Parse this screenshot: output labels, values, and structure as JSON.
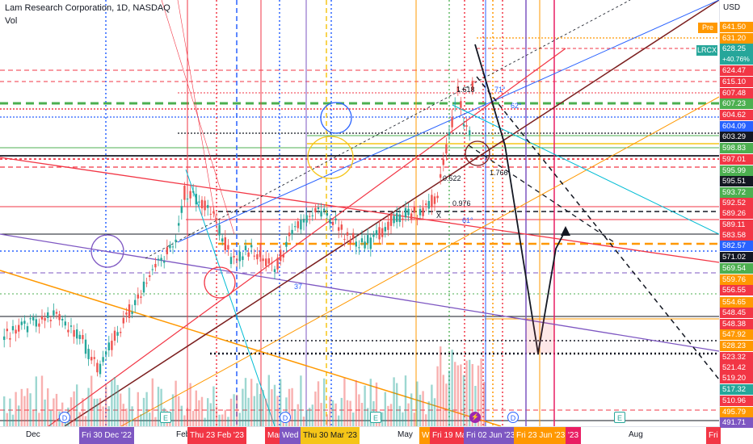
{
  "header": {
    "title": "Lam Research Corporation, 1D, NASDAQ",
    "volume_label": "Vol"
  },
  "price_axis": {
    "currency": "USD",
    "pre_label": "Pre",
    "ticker_label": "LRCX",
    "change_label": "+40.76%",
    "labels": [
      {
        "text": "641.50",
        "color": "#ff9800"
      },
      {
        "text": "631.20",
        "color": "#ff9800"
      },
      {
        "text": "628.25",
        "color": "#26a69a"
      },
      {
        "text": "624.47",
        "color": "#f23645"
      },
      {
        "text": "615.10",
        "color": "#f23645"
      },
      {
        "text": "607.48",
        "color": "#f23645"
      },
      {
        "text": "607.23",
        "color": "#4caf50"
      },
      {
        "text": "604.62",
        "color": "#f23645"
      },
      {
        "text": "604.09",
        "color": "#2962ff"
      },
      {
        "text": "603.29",
        "color": "#131722"
      },
      {
        "text": "598.83",
        "color": "#4caf50"
      },
      {
        "text": "597.01",
        "color": "#f23645"
      },
      {
        "text": "595.99",
        "color": "#4caf50"
      },
      {
        "text": "595.51",
        "color": "#131722"
      },
      {
        "text": "593.72",
        "color": "#4caf50"
      },
      {
        "text": "592.52",
        "color": "#f23645"
      },
      {
        "text": "589.26",
        "color": "#f23645"
      },
      {
        "text": "589.11",
        "color": "#f23645"
      },
      {
        "text": "583.58",
        "color": "#f23645"
      },
      {
        "text": "582.57",
        "color": "#2962ff"
      },
      {
        "text": "571.02",
        "color": "#131722"
      },
      {
        "text": "569.54",
        "color": "#4caf50"
      },
      {
        "text": "559.76",
        "color": "#ff9800"
      },
      {
        "text": "556.55",
        "color": "#f23645"
      },
      {
        "text": "554.65",
        "color": "#ff9800"
      },
      {
        "text": "548.45",
        "color": "#f23645"
      },
      {
        "text": "548.38",
        "color": "#f23645"
      },
      {
        "text": "547.92",
        "color": "#ff9800"
      },
      {
        "text": "528.23",
        "color": "#ff9800"
      },
      {
        "text": "523.32",
        "color": "#f23645"
      },
      {
        "text": "521.42",
        "color": "#f23645"
      },
      {
        "text": "519.20",
        "color": "#f23645"
      },
      {
        "text": "517.32",
        "color": "#26a69a"
      },
      {
        "text": "510.96",
        "color": "#f23645"
      },
      {
        "text": "495.79",
        "color": "#ff9800"
      },
      {
        "text": "491.71",
        "color": "#7e57c2"
      }
    ]
  },
  "time_axis": {
    "plain_labels": [
      "Dec",
      "Feb",
      "Mar",
      "May",
      "Aug"
    ],
    "highlighted": [
      {
        "text": "Fri 30 Dec '22",
        "color": "#7e57c2"
      },
      {
        "text": "Thu 23 Feb '23",
        "color": "#f23645"
      },
      {
        "text": "Mar",
        "color": "#f23645"
      },
      {
        "text": "Wed",
        "color": "#7e57c2"
      },
      {
        "text": "Thu 30 Mar '23",
        "color": "#f5c518"
      },
      {
        "text": "W",
        "color": "#ff9800"
      },
      {
        "text": "Fri 19 Ma",
        "color": "#f23645"
      },
      {
        "text": "Fri 02 Jun '23",
        "color": "#7e57c2"
      },
      {
        "text": "Fri 23 Jun '23",
        "color": "#ff9800"
      },
      {
        "text": "'23",
        "color": "#e91e63"
      },
      {
        "text": "Fri",
        "color": "#f23645"
      }
    ],
    "event_markers": [
      "D",
      "E",
      "D",
      "E",
      "D",
      "E"
    ]
  },
  "annotations": [
    "1.618",
    "0.522",
    "1.766",
    "0.976",
    "X",
    "61°",
    "37",
    "62°",
    "71°"
  ],
  "chart_data": {
    "type": "candlestick",
    "title": "Lam Research Corporation, 1D, NASDAQ",
    "colors": {
      "up": "#26a69a",
      "down": "#ef5350"
    },
    "ylim": [
      489,
      645
    ],
    "y_axis_labels": [
      "641.50",
      "631.20",
      "628.25",
      "624.47",
      "615.10",
      "607.48",
      "607.23",
      "604.62",
      "604.09",
      "603.29",
      "598.83",
      "597.01",
      "595.99",
      "595.51",
      "593.72",
      "592.52",
      "589.26",
      "589.11",
      "583.58",
      "582.57",
      "571.02",
      "569.54",
      "559.76",
      "556.55",
      "554.65",
      "548.45",
      "548.38",
      "547.92",
      "528.23",
      "523.32",
      "521.42",
      "519.20",
      "517.32",
      "510.96",
      "495.79",
      "491.71"
    ],
    "last_price": 628.25,
    "change_percent": "+40.76%"
  }
}
